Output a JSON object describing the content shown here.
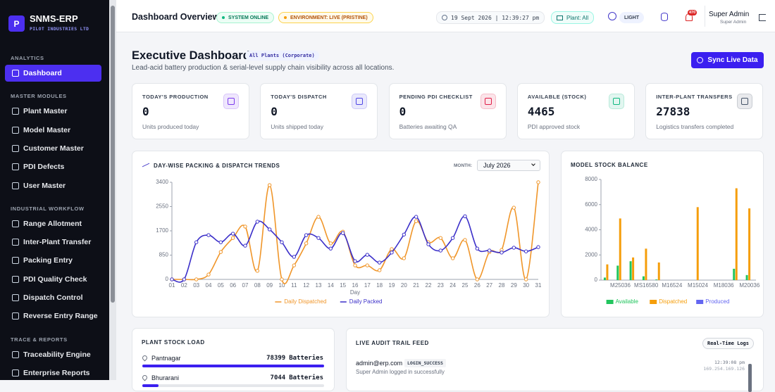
{
  "sidebar": {
    "logo": "P",
    "brand": "SNMS-ERP",
    "company": "PILOT INDUSTRIES LTD",
    "active": "Dashboard",
    "sections": [
      {
        "title": "ANALYTICS",
        "items": [
          "Dashboard"
        ]
      },
      {
        "title": "MASTER MODULES",
        "items": [
          "Plant Master",
          "Model Master",
          "Customer Master",
          "PDI Defects",
          "User Master"
        ]
      },
      {
        "title": "INDUSTRIAL WORKFLOW",
        "items": [
          "Range Allotment",
          "Inter-Plant Transfer",
          "Packing Entry",
          "PDI Quality Check",
          "Dispatch Control",
          "Reverse Entry Range"
        ]
      },
      {
        "title": "TRACE & REPORTS",
        "items": [
          "Traceability Engine",
          "Enterprise Reports"
        ]
      }
    ]
  },
  "header": {
    "title": "Dashboard Overview",
    "status": "SYSTEM ONLINE",
    "environment": "ENVIRONMENT: LIVE (PRISTINE)",
    "datetime": "19 Sept 2026 | 12:39:27 pm",
    "plant": "Plant: All",
    "theme": "LIGHT",
    "notifications": "470",
    "user": "Super Admin",
    "role": "Super Admin"
  },
  "dashboard": {
    "title": "Executive Dashboard",
    "scope": "All Plants (Corporate)",
    "subtitle": "Lead-acid battery production & serial-level supply chain visibility across all locations.",
    "sync": "Sync Live Data"
  },
  "kpis": [
    {
      "label": "TODAY'S PRODUCTION",
      "value": 0,
      "note": "Units produced today",
      "color": "#7c3aed"
    },
    {
      "label": "TODAY'S DISPATCH",
      "value": 0,
      "note": "Units shipped today",
      "color": "#4f46e5"
    },
    {
      "label": "PENDING PDI CHECKLIST",
      "value": 0,
      "note": "Batteries awaiting QA",
      "color": "#e11d48"
    },
    {
      "label": "AVAILABLE (STOCK)",
      "value": 4465,
      "note": "PDI approved stock",
      "color": "#10b981"
    },
    {
      "label": "INTER-PLANT TRANSFERS",
      "value": 27838,
      "note": "Logistics transfers completed",
      "color": "#475569"
    }
  ],
  "chart_data": [
    {
      "type": "line",
      "title": "DAY-WISE PACKING & DISPATCH TRENDS",
      "filter_label": "MONTH:",
      "filter_value": "July 2026",
      "xlabel": "Day",
      "categories": [
        "01",
        "02",
        "03",
        "04",
        "05",
        "06",
        "07",
        "08",
        "09",
        "10",
        "11",
        "12",
        "13",
        "14",
        "15",
        "16",
        "17",
        "18",
        "19",
        "20",
        "21",
        "22",
        "23",
        "24",
        "25",
        "26",
        "27",
        "28",
        "29",
        "30",
        "31"
      ],
      "series": [
        {
          "name": "Daily Dispatched",
          "color": "#f0962a",
          "values": [
            0,
            0,
            0,
            170,
            960,
            1450,
            1850,
            300,
            3300,
            0,
            490,
            1260,
            2190,
            1260,
            1670,
            490,
            490,
            320,
            1060,
            740,
            2040,
            1300,
            1450,
            740,
            1380,
            0,
            960,
            1030,
            2510,
            0,
            3400
          ]
        },
        {
          "name": "Daily Packed",
          "color": "#3b2fc9",
          "values": [
            0,
            0,
            1300,
            1550,
            1300,
            1600,
            1180,
            2020,
            1750,
            1300,
            790,
            1550,
            1450,
            1080,
            1620,
            640,
            860,
            590,
            940,
            1570,
            2190,
            1230,
            1010,
            1450,
            2210,
            1080,
            1010,
            940,
            1110,
            980,
            1130
          ]
        }
      ],
      "ylim": [
        0,
        3400
      ],
      "yticks": [
        0,
        850,
        1700,
        2550,
        3400
      ],
      "grid": false
    },
    {
      "type": "bar",
      "title": "MODEL STOCK BALANCE",
      "categories": [
        null,
        "M25036",
        null,
        "MS16580",
        null,
        "M16524",
        null,
        "M15024",
        null,
        "M18036",
        null,
        "M20036"
      ],
      "series": [
        {
          "name": "Available",
          "color": "#22c55e",
          "values": [
            200,
            1150,
            1500,
            300,
            50,
            0,
            0,
            0,
            0,
            0,
            900,
            400
          ]
        },
        {
          "name": "Dispatched",
          "color": "#f59e0b",
          "values": [
            1250,
            4900,
            1800,
            2500,
            1400,
            0,
            0,
            5800,
            0,
            0,
            7300,
            5700
          ]
        },
        {
          "name": "Produced",
          "color": "#6366f1",
          "values": [
            0,
            0,
            0,
            0,
            0,
            0,
            0,
            0,
            0,
            0,
            0,
            0
          ]
        }
      ],
      "ylim": [
        0,
        8000
      ],
      "yticks": [
        0,
        2000,
        4000,
        6000,
        8000
      ],
      "grid": false
    }
  ],
  "plant_stock": {
    "title": "PLANT STOCK LOAD",
    "rows": [
      {
        "name": "Pantnagar",
        "value": 78399,
        "unit": "Batteries"
      },
      {
        "name": "Bhurarani",
        "value": 7044,
        "unit": "Batteries"
      }
    ]
  },
  "audit": {
    "title": "LIVE AUDIT TRAIL FEED",
    "badge": "Real-Time Logs",
    "entries": [
      {
        "user": "admin@erp.com",
        "action": "LOGIN_SUCCESS",
        "detail": "Super Admin logged in successfully",
        "time": "12:39:08 pm",
        "ip": "169.254.169.126"
      }
    ]
  }
}
